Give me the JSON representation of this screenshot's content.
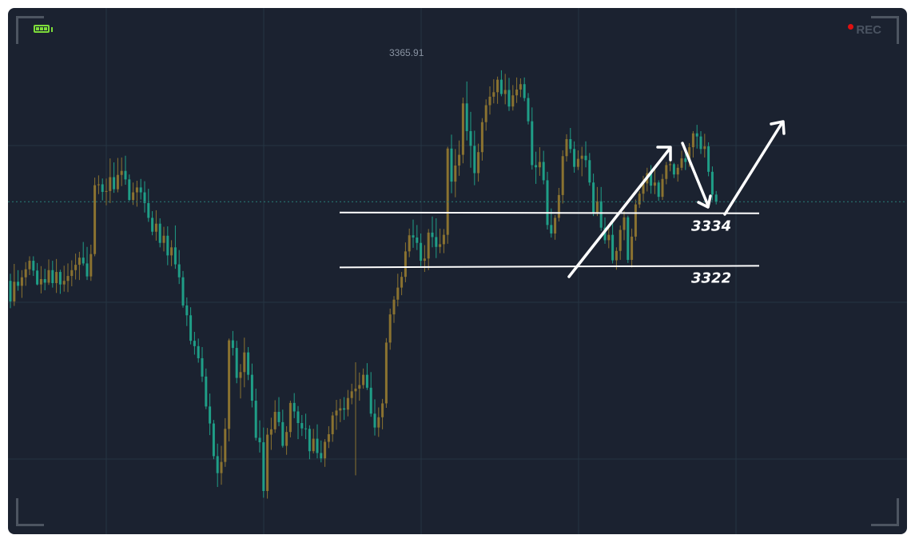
{
  "rec_label": "REC",
  "colors": {
    "background": "#1b2230",
    "grid": "#263442",
    "bull": "#8a7230",
    "bear": "#1f9e87",
    "annotation": "#ffffff",
    "rec_dot": "#e01010",
    "battery": "#7ddc3a",
    "corner": "#4d5561"
  },
  "chart_data": {
    "type": "candlestick",
    "instrument": "",
    "title": "",
    "xlabel": "",
    "ylabel": "",
    "grid": true,
    "ylim": [
      3265,
      3370
    ],
    "max_label": "3365.91",
    "current_price": 3336.5,
    "levels": [
      {
        "value": 3334,
        "label": "3334"
      },
      {
        "value": 3322,
        "label": "3322"
      }
    ],
    "annotations": [
      {
        "type": "arrow",
        "direction": "up",
        "description": "projected rise from 3322 area to local high"
      },
      {
        "type": "arrow",
        "direction": "down",
        "description": "projected pullback toward 3334"
      },
      {
        "type": "arrow",
        "direction": "up",
        "description": "projected continuation higher"
      }
    ],
    "candles": [
      [
        3318.8,
        3320.4,
        3312.7,
        3314.2
      ],
      [
        3314.2,
        3322.6,
        3313.2,
        3318.6
      ],
      [
        3318.6,
        3321.2,
        3316.6,
        3317.7
      ],
      [
        3317.7,
        3321.2,
        3315.0,
        3319.6
      ],
      [
        3319.6,
        3323.0,
        3317.7,
        3321.4
      ],
      [
        3321.4,
        3324.3,
        3320.1,
        3323.3
      ],
      [
        3323.3,
        3324.3,
        3319.9,
        3321.1
      ],
      [
        3321.1,
        3322.8,
        3317.8,
        3318.0
      ],
      [
        3318.0,
        3322.1,
        3316.0,
        3319.2
      ],
      [
        3319.2,
        3321.5,
        3316.7,
        3318.4
      ],
      [
        3318.4,
        3323.6,
        3317.9,
        3321.2
      ],
      [
        3321.2,
        3323.3,
        3317.3,
        3318.3
      ],
      [
        3318.3,
        3323.7,
        3316.1,
        3320.8
      ],
      [
        3320.8,
        3321.3,
        3315.9,
        3318.0
      ],
      [
        3318.0,
        3322.2,
        3316.4,
        3318.8
      ],
      [
        3318.8,
        3322.7,
        3316.3,
        3319.9
      ],
      [
        3319.9,
        3323.4,
        3317.6,
        3321.2
      ],
      [
        3321.2,
        3324.9,
        3319.1,
        3322.4
      ],
      [
        3322.4,
        3325.3,
        3319.0,
        3324.0
      ],
      [
        3324.0,
        3327.5,
        3322.2,
        3322.7
      ],
      [
        3322.7,
        3326.4,
        3319.0,
        3319.8
      ],
      [
        3319.8,
        3326.9,
        3318.8,
        3324.8
      ],
      [
        3324.8,
        3341.9,
        3324.3,
        3340.2
      ],
      [
        3340.2,
        3342.4,
        3338.2,
        3340.4
      ],
      [
        3340.4,
        3341.7,
        3336.8,
        3338.7
      ],
      [
        3338.7,
        3341.7,
        3335.7,
        3338.9
      ],
      [
        3338.9,
        3346.2,
        3336.2,
        3342.0
      ],
      [
        3342.0,
        3345.3,
        3338.5,
        3339.3
      ],
      [
        3339.3,
        3346.3,
        3338.6,
        3342.5
      ],
      [
        3342.5,
        3346.4,
        3340.0,
        3343.4
      ],
      [
        3343.4,
        3346.8,
        3340.3,
        3341.5
      ],
      [
        3341.5,
        3342.6,
        3336.7,
        3336.9
      ],
      [
        3336.9,
        3340.8,
        3335.8,
        3338.6
      ],
      [
        3338.6,
        3341.2,
        3335.4,
        3339.7
      ],
      [
        3339.7,
        3341.6,
        3337.0,
        3338.6
      ],
      [
        3338.6,
        3341.1,
        3334.1,
        3336.2
      ],
      [
        3336.2,
        3339.4,
        3332.0,
        3332.9
      ],
      [
        3332.9,
        3334.4,
        3329.0,
        3329.8
      ],
      [
        3329.8,
        3334.6,
        3327.8,
        3331.6
      ],
      [
        3331.6,
        3332.8,
        3326.3,
        3327.3
      ],
      [
        3327.3,
        3330.9,
        3325.4,
        3328.9
      ],
      [
        3328.9,
        3331.0,
        3322.3,
        3324.5
      ],
      [
        3324.5,
        3327.9,
        3322.1,
        3326.3
      ],
      [
        3326.3,
        3331.2,
        3321.5,
        3322.5
      ],
      [
        3322.5,
        3325.7,
        3318.1,
        3319.6
      ],
      [
        3319.6,
        3321.0,
        3312.8,
        3313.3
      ],
      [
        3313.3,
        3315.1,
        3308.7,
        3311.1
      ],
      [
        3311.1,
        3312.9,
        3304.6,
        3305.4
      ],
      [
        3305.4,
        3307.4,
        3302.3,
        3304.2
      ],
      [
        3304.2,
        3305.9,
        3300.5,
        3301.5
      ],
      [
        3301.5,
        3304.0,
        3296.2,
        3297.4
      ],
      [
        3297.4,
        3299.2,
        3290.1,
        3290.7
      ],
      [
        3290.7,
        3293.6,
        3284.3,
        3286.9
      ],
      [
        3286.9,
        3287.7,
        3278.9,
        3279.6
      ],
      [
        3279.6,
        3282.4,
        3272.7,
        3275.8
      ],
      [
        3275.8,
        3281.9,
        3273.2,
        3278.3
      ],
      [
        3278.3,
        3288.1,
        3277.2,
        3285.7
      ],
      [
        3285.7,
        3305.9,
        3282.9,
        3305.5
      ],
      [
        3305.5,
        3307.6,
        3302.1,
        3303.8
      ],
      [
        3303.8,
        3305.4,
        3295.9,
        3297.1
      ],
      [
        3297.1,
        3300.2,
        3292.5,
        3298.4
      ],
      [
        3298.4,
        3306.1,
        3295.0,
        3302.8
      ],
      [
        3302.8,
        3304.0,
        3296.6,
        3297.8
      ],
      [
        3297.8,
        3300.3,
        3290.5,
        3292.0
      ],
      [
        3292.0,
        3294.7,
        3283.1,
        3283.7
      ],
      [
        3283.7,
        3287.6,
        3280.4,
        3282.7
      ],
      [
        3282.7,
        3286.0,
        3270.3,
        3271.8
      ],
      [
        3271.8,
        3285.9,
        3270.1,
        3284.4
      ],
      [
        3284.4,
        3288.2,
        3281.0,
        3285.6
      ],
      [
        3285.6,
        3292.1,
        3284.8,
        3289.5
      ],
      [
        3289.5,
        3292.8,
        3286.3,
        3287.2
      ],
      [
        3287.2,
        3290.0,
        3281.5,
        3281.9
      ],
      [
        3281.9,
        3286.3,
        3279.9,
        3285.0
      ],
      [
        3285.0,
        3292.0,
        3283.8,
        3291.5
      ],
      [
        3291.5,
        3293.7,
        3288.1,
        3289.6
      ],
      [
        3289.6,
        3290.8,
        3283.4,
        3287.0
      ],
      [
        3287.0,
        3288.8,
        3284.1,
        3285.8
      ],
      [
        3285.8,
        3289.1,
        3283.4,
        3285.7
      ],
      [
        3285.7,
        3286.5,
        3278.9,
        3280.7
      ],
      [
        3280.7,
        3285.7,
        3280.2,
        3283.5
      ],
      [
        3283.5,
        3286.7,
        3279.1,
        3280.3
      ],
      [
        3280.3,
        3283.1,
        3278.2,
        3279.1
      ],
      [
        3279.1,
        3283.4,
        3277.2,
        3282.8
      ],
      [
        3282.8,
        3286.3,
        3281.4,
        3284.5
      ],
      [
        3284.5,
        3289.5,
        3282.8,
        3288.7
      ],
      [
        3288.7,
        3292.2,
        3285.5,
        3289.8
      ],
      [
        3289.8,
        3292.4,
        3287.2,
        3290.3
      ],
      [
        3290.3,
        3292.8,
        3287.7,
        3290.0
      ],
      [
        3290.0,
        3294.4,
        3288.5,
        3292.6
      ],
      [
        3292.6,
        3295.8,
        3291.2,
        3294.1
      ],
      [
        3294.1,
        3300.6,
        3275.3,
        3294.7
      ],
      [
        3294.7,
        3298.3,
        3292.0,
        3295.5
      ],
      [
        3295.5,
        3299.2,
        3294.7,
        3297.8
      ],
      [
        3297.8,
        3300.4,
        3294.4,
        3294.9
      ],
      [
        3294.9,
        3298.4,
        3288.4,
        3289.1
      ],
      [
        3289.1,
        3292.3,
        3284.2,
        3286.0
      ],
      [
        3286.0,
        3290.5,
        3283.9,
        3288.3
      ],
      [
        3288.3,
        3292.4,
        3285.6,
        3291.4
      ],
      [
        3291.4,
        3306.0,
        3290.4,
        3305.0
      ],
      [
        3305.0,
        3312.6,
        3303.4,
        3311.3
      ],
      [
        3311.3,
        3315.4,
        3309.4,
        3314.6
      ],
      [
        3314.6,
        3320.4,
        3313.1,
        3317.3
      ],
      [
        3317.3,
        3320.8,
        3315.6,
        3319.7
      ],
      [
        3319.7,
        3327.4,
        3318.5,
        3325.4
      ],
      [
        3325.4,
        3330.5,
        3324.1,
        3329.0
      ],
      [
        3329.0,
        3332.5,
        3326.2,
        3328.5
      ],
      [
        3328.5,
        3331.3,
        3325.7,
        3327.3
      ],
      [
        3327.3,
        3329.4,
        3322.1,
        3323.3
      ],
      [
        3323.3,
        3326.8,
        3320.8,
        3323.8
      ],
      [
        3323.8,
        3330.4,
        3321.2,
        3329.6
      ],
      [
        3329.6,
        3333.2,
        3326.3,
        3328.6
      ],
      [
        3328.6,
        3332.8,
        3323.9,
        3326.4
      ],
      [
        3326.4,
        3330.5,
        3325.0,
        3327.0
      ],
      [
        3327.0,
        3330.4,
        3325.0,
        3329.1
      ],
      [
        3329.1,
        3348.8,
        3327.1,
        3348.4
      ],
      [
        3348.4,
        3351.5,
        3338.4,
        3341.0
      ],
      [
        3341.0,
        3348.3,
        3337.5,
        3344.6
      ],
      [
        3344.6,
        3350.2,
        3342.3,
        3347.0
      ],
      [
        3347.0,
        3359.8,
        3345.1,
        3358.5
      ],
      [
        3358.5,
        3363.4,
        3350.2,
        3352.3
      ],
      [
        3352.3,
        3356.6,
        3344.1,
        3349.0
      ],
      [
        3349.0,
        3352.4,
        3340.2,
        3342.9
      ],
      [
        3342.9,
        3349.5,
        3341.0,
        3347.6
      ],
      [
        3347.6,
        3355.2,
        3345.7,
        3354.3
      ],
      [
        3354.3,
        3359.4,
        3352.4,
        3358.1
      ],
      [
        3358.1,
        3362.3,
        3356.0,
        3360.0
      ],
      [
        3360.0,
        3363.9,
        3358.5,
        3361.0
      ],
      [
        3361.0,
        3364.5,
        3358.4,
        3363.8
      ],
      [
        3363.8,
        3365.9,
        3360.1,
        3360.6
      ],
      [
        3360.6,
        3365.1,
        3358.3,
        3361.5
      ],
      [
        3361.5,
        3364.2,
        3356.8,
        3357.8
      ],
      [
        3357.8,
        3362.6,
        3356.9,
        3360.3
      ],
      [
        3360.3,
        3364.3,
        3358.6,
        3361.6
      ],
      [
        3361.6,
        3364.1,
        3359.9,
        3362.8
      ],
      [
        3362.8,
        3364.3,
        3359.0,
        3359.7
      ],
      [
        3359.7,
        3360.8,
        3353.8,
        3354.5
      ],
      [
        3354.5,
        3357.6,
        3343.7,
        3344.7
      ],
      [
        3344.7,
        3347.7,
        3340.5,
        3344.2
      ],
      [
        3344.2,
        3348.7,
        3342.3,
        3345.4
      ],
      [
        3345.4,
        3347.9,
        3340.4,
        3341.3
      ],
      [
        3341.3,
        3343.2,
        3330.3,
        3331.3
      ],
      [
        3331.3,
        3335.0,
        3328.5,
        3329.4
      ],
      [
        3329.4,
        3333.5,
        3328.0,
        3332.9
      ],
      [
        3332.9,
        3339.6,
        3332.1,
        3338.0
      ],
      [
        3338.0,
        3348.0,
        3336.1,
        3346.7
      ],
      [
        3346.7,
        3351.6,
        3345.5,
        3350.5
      ],
      [
        3350.5,
        3353.0,
        3347.4,
        3348.3
      ],
      [
        3348.3,
        3350.0,
        3343.0,
        3344.3
      ],
      [
        3344.3,
        3348.0,
        3343.6,
        3346.1
      ],
      [
        3346.1,
        3348.8,
        3342.2,
        3346.8
      ],
      [
        3346.8,
        3350.0,
        3344.2,
        3345.8
      ],
      [
        3345.8,
        3347.4,
        3340.1,
        3340.8
      ],
      [
        3340.8,
        3342.8,
        3333.3,
        3333.9
      ],
      [
        3333.9,
        3339.8,
        3333.3,
        3336.6
      ],
      [
        3336.6,
        3339.8,
        3330.0,
        3330.7
      ],
      [
        3330.7,
        3333.0,
        3327.1,
        3327.9
      ],
      [
        3327.9,
        3331.2,
        3326.1,
        3329.1
      ],
      [
        3329.1,
        3331.8,
        3322.7,
        3323.4
      ],
      [
        3323.4,
        3326.3,
        3321.3,
        3325.5
      ],
      [
        3325.5,
        3331.2,
        3323.5,
        3330.2
      ],
      [
        3330.2,
        3334.4,
        3327.9,
        3333.0
      ],
      [
        3333.0,
        3333.4,
        3322.8,
        3323.5
      ],
      [
        3323.5,
        3330.5,
        3321.8,
        3328.7
      ],
      [
        3328.7,
        3337.0,
        3327.8,
        3335.9
      ],
      [
        3335.9,
        3338.9,
        3335.1,
        3338.3
      ],
      [
        3338.3,
        3342.3,
        3336.6,
        3340.6
      ],
      [
        3340.6,
        3344.1,
        3338.8,
        3342.9
      ],
      [
        3342.9,
        3344.7,
        3338.3,
        3340.1
      ],
      [
        3340.1,
        3343.8,
        3338.2,
        3340.8
      ],
      [
        3340.8,
        3341.3,
        3336.7,
        3337.6
      ],
      [
        3337.6,
        3342.7,
        3336.9,
        3341.6
      ],
      [
        3341.6,
        3345.4,
        3340.4,
        3344.7
      ],
      [
        3344.7,
        3346.6,
        3343.3,
        3344.9
      ],
      [
        3344.9,
        3345.2,
        3341.8,
        3342.6
      ],
      [
        3342.6,
        3344.9,
        3341.0,
        3344.1
      ],
      [
        3344.1,
        3347.9,
        3343.5,
        3346.2
      ],
      [
        3346.2,
        3348.4,
        3343.6,
        3345.4
      ],
      [
        3345.4,
        3349.6,
        3344.3,
        3348.7
      ],
      [
        3348.7,
        3352.3,
        3346.4,
        3351.8
      ],
      [
        3351.8,
        3353.7,
        3348.4,
        3351.1
      ],
      [
        3351.1,
        3352.3,
        3347.2,
        3348.3
      ],
      [
        3348.3,
        3351.7,
        3346.4,
        3348.9
      ],
      [
        3348.9,
        3349.8,
        3342.2,
        3343.2
      ],
      [
        3343.2,
        3344.4,
        3336.8,
        3338.1
      ],
      [
        3338.1,
        3338.9,
        3335.9,
        3336.5
      ]
    ]
  }
}
